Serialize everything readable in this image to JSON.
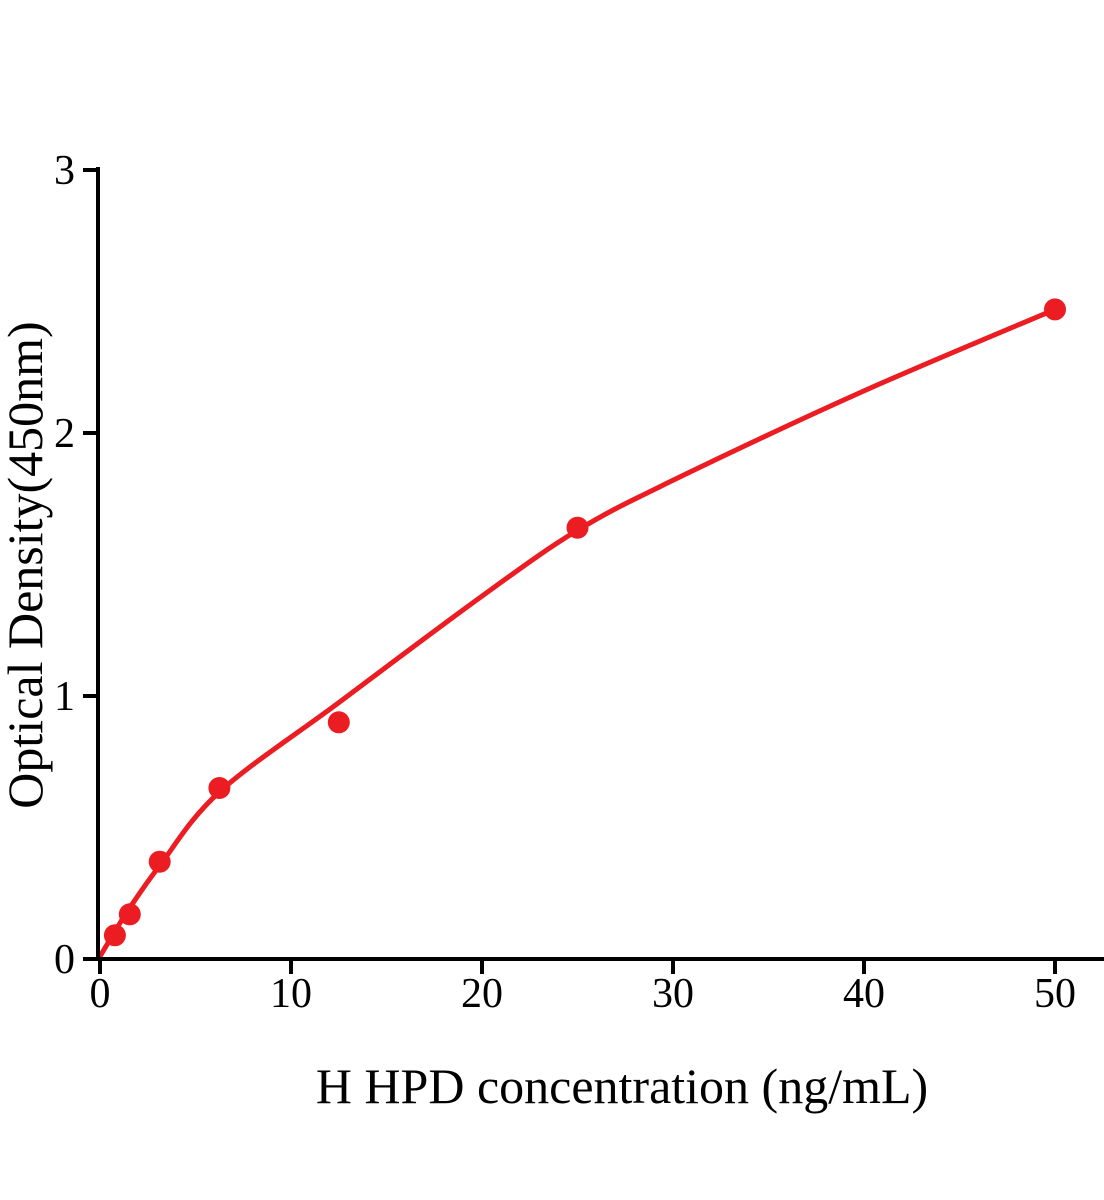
{
  "colors": {
    "accent_red": "#ec1c23",
    "axis_black": "#000000",
    "background": "#ffffff"
  },
  "chart_data": {
    "type": "scatter",
    "title": "",
    "xlabel": "H HPD concentration (ng/mL)",
    "ylabel": "Optical Density(450nm)",
    "xlim": [
      0,
      52.6
    ],
    "ylim": [
      0,
      3
    ],
    "x_ticks": [
      0,
      10,
      20,
      30,
      40,
      50
    ],
    "y_ticks": [
      0,
      1,
      2,
      3
    ],
    "grid": false,
    "legend_position": "none",
    "series": [
      {
        "name": "standard-points",
        "marker": "circle",
        "marker_radius_px": 11,
        "color": "#ec1c23",
        "x": [
          0.78,
          1.56,
          3.125,
          6.25,
          12.5,
          25,
          50
        ],
        "y": [
          0.09,
          0.17,
          0.37,
          0.65,
          0.9,
          1.64,
          2.47
        ]
      }
    ],
    "fit_curve": {
      "name": "fitted-standard-curve",
      "color": "#ec1c23",
      "stroke_width_px": 5,
      "points": [
        [
          0,
          0.01
        ],
        [
          0.78,
          0.105
        ],
        [
          1.56,
          0.195
        ],
        [
          3.125,
          0.355
        ],
        [
          6.25,
          0.635
        ],
        [
          12.5,
          0.975
        ],
        [
          20,
          1.38
        ],
        [
          25,
          1.63
        ],
        [
          30,
          1.82
        ],
        [
          40,
          2.16
        ],
        [
          50,
          2.47
        ]
      ]
    }
  }
}
